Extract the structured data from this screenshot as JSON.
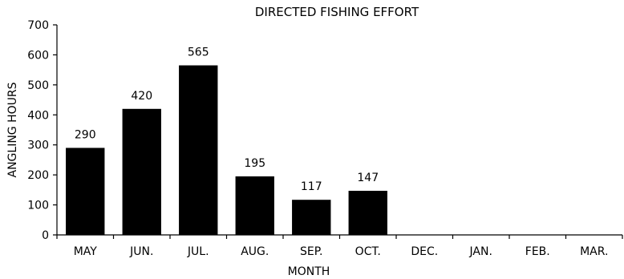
{
  "chart_data": {
    "type": "bar",
    "title": "DIRECTED FISHING EFFORT",
    "xlabel": "MONTH",
    "ylabel": "ANGLING HOURS",
    "categories": [
      "MAY",
      "JUN.",
      "JUL.",
      "AUG.",
      "SEP.",
      "OCT.",
      "DEC.",
      "JAN.",
      "FEB.",
      "MAR."
    ],
    "values": [
      290,
      420,
      565,
      195,
      117,
      147,
      null,
      null,
      null,
      null
    ],
    "data_labels": [
      "290",
      "420",
      "565",
      "195",
      "117",
      "147",
      "",
      "",
      "",
      ""
    ],
    "ylim": [
      0,
      700
    ],
    "yticks": [
      0,
      100,
      200,
      300,
      400,
      500,
      600,
      700
    ],
    "grid": false,
    "legend": "none",
    "bar_color": "#000000"
  }
}
